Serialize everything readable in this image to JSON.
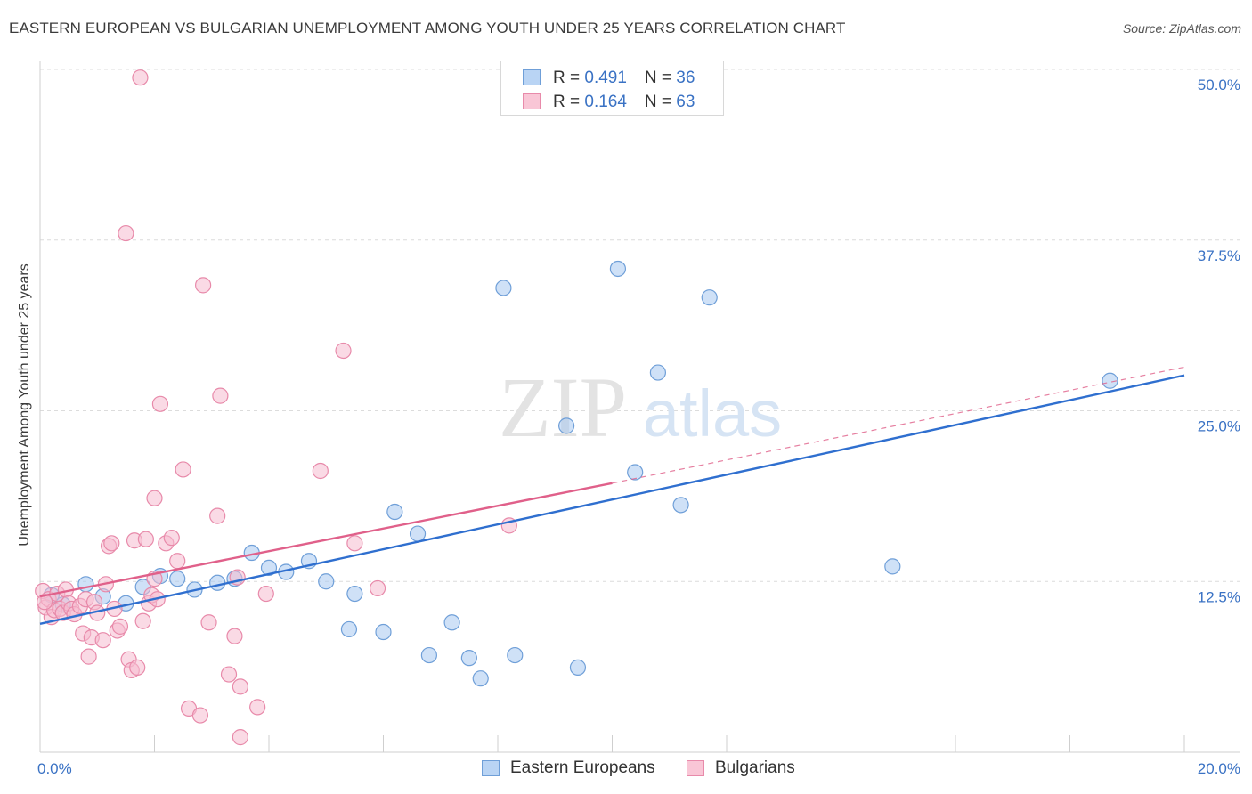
{
  "chart_data": {
    "type": "scatter",
    "title": "EASTERN EUROPEAN VS BULGARIAN UNEMPLOYMENT AMONG YOUTH UNDER 25 YEARS CORRELATION CHART",
    "source": "Source: ZipAtlas.com",
    "xlabel": "",
    "ylabel": "Unemployment Among Youth under 25 years",
    "xlim": [
      0,
      20
    ],
    "ylim": [
      0,
      50
    ],
    "x_tick_labels": [
      {
        "value": 0,
        "label": "0.0%"
      },
      {
        "value": 20,
        "label": "20.0%"
      }
    ],
    "y_tick_labels": [
      {
        "value": 12.5,
        "label": "12.5%"
      },
      {
        "value": 25,
        "label": "25.0%"
      },
      {
        "value": 37.5,
        "label": "37.5%"
      },
      {
        "value": 50,
        "label": "50.0%"
      }
    ],
    "legend": {
      "position": "top-center",
      "entries": [
        {
          "r_label": "R = ",
          "r_value": "0.491",
          "n_label": "N = ",
          "n_value": "36"
        },
        {
          "r_label": "R = ",
          "r_value": "0.164",
          "n_label": "N = ",
          "n_value": "63"
        }
      ]
    },
    "series": [
      {
        "name": "Eastern Europeans",
        "color": "#a8c8f0",
        "stroke": "#6f9fd8",
        "trend_color": "#2f6fcf",
        "trend": {
          "x0": 0,
          "y0": 9.4,
          "x1": 20,
          "y1": 27.6
        },
        "points": [
          [
            0.2,
            11.5
          ],
          [
            0.4,
            10.8
          ],
          [
            0.8,
            12.3
          ],
          [
            1.1,
            11.4
          ],
          [
            1.5,
            10.9
          ],
          [
            1.8,
            12.1
          ],
          [
            2.1,
            12.9
          ],
          [
            2.4,
            12.7
          ],
          [
            2.7,
            11.9
          ],
          [
            3.1,
            12.4
          ],
          [
            3.4,
            12.7
          ],
          [
            3.7,
            14.6
          ],
          [
            4.0,
            13.5
          ],
          [
            4.3,
            13.2
          ],
          [
            4.7,
            14.0
          ],
          [
            5.0,
            12.5
          ],
          [
            5.4,
            9.0
          ],
          [
            5.5,
            11.6
          ],
          [
            6.0,
            8.8
          ],
          [
            6.2,
            17.6
          ],
          [
            6.6,
            16.0
          ],
          [
            6.8,
            7.1
          ],
          [
            7.2,
            9.5
          ],
          [
            7.5,
            6.9
          ],
          [
            7.7,
            5.4
          ],
          [
            8.1,
            34.0
          ],
          [
            8.3,
            7.1
          ],
          [
            9.2,
            23.9
          ],
          [
            9.4,
            6.2
          ],
          [
            10.1,
            35.4
          ],
          [
            10.4,
            20.5
          ],
          [
            10.8,
            27.8
          ],
          [
            11.2,
            18.1
          ],
          [
            11.7,
            33.3
          ],
          [
            14.9,
            13.6
          ],
          [
            18.7,
            27.2
          ]
        ]
      },
      {
        "name": "Bulgarians",
        "color": "#f6bcd0",
        "stroke": "#e88aaa",
        "trend_color": "#e0608a",
        "trend": {
          "x0": 0,
          "y0": 11.4,
          "x1": 10.0,
          "y1": 19.7
        },
        "trend_dashed": {
          "x0": 10.0,
          "y0": 19.7,
          "x1": 20,
          "y1": 28.2
        },
        "points": [
          [
            0.05,
            11.8
          ],
          [
            0.1,
            10.6
          ],
          [
            0.15,
            11.2
          ],
          [
            0.2,
            9.9
          ],
          [
            0.25,
            10.4
          ],
          [
            0.3,
            11.6
          ],
          [
            0.35,
            10.5
          ],
          [
            0.4,
            10.2
          ],
          [
            0.45,
            11.9
          ],
          [
            0.5,
            10.9
          ],
          [
            0.55,
            10.5
          ],
          [
            0.6,
            10.1
          ],
          [
            0.7,
            10.7
          ],
          [
            0.75,
            8.7
          ],
          [
            0.8,
            11.2
          ],
          [
            0.85,
            7.0
          ],
          [
            0.9,
            8.4
          ],
          [
            0.95,
            11.0
          ],
          [
            1.0,
            10.2
          ],
          [
            1.1,
            8.2
          ],
          [
            1.15,
            12.3
          ],
          [
            1.2,
            15.1
          ],
          [
            1.25,
            15.3
          ],
          [
            1.3,
            10.5
          ],
          [
            1.35,
            8.9
          ],
          [
            1.4,
            9.2
          ],
          [
            1.5,
            38.0
          ],
          [
            1.55,
            6.8
          ],
          [
            1.6,
            6.0
          ],
          [
            1.65,
            15.5
          ],
          [
            1.7,
            6.2
          ],
          [
            1.75,
            49.4
          ],
          [
            1.8,
            9.6
          ],
          [
            1.85,
            15.6
          ],
          [
            1.9,
            10.9
          ],
          [
            1.95,
            11.5
          ],
          [
            2.0,
            12.7
          ],
          [
            2.05,
            11.2
          ],
          [
            2.0,
            18.6
          ],
          [
            2.1,
            25.5
          ],
          [
            2.2,
            15.3
          ],
          [
            2.3,
            15.7
          ],
          [
            2.4,
            14.0
          ],
          [
            2.5,
            20.7
          ],
          [
            2.6,
            3.2
          ],
          [
            2.8,
            2.7
          ],
          [
            2.85,
            34.2
          ],
          [
            2.95,
            9.5
          ],
          [
            3.1,
            17.3
          ],
          [
            3.15,
            26.1
          ],
          [
            3.3,
            5.7
          ],
          [
            3.4,
            8.5
          ],
          [
            3.45,
            12.8
          ],
          [
            3.5,
            4.8
          ],
          [
            3.5,
            1.1
          ],
          [
            3.8,
            3.3
          ],
          [
            3.95,
            11.6
          ],
          [
            4.9,
            20.6
          ],
          [
            5.3,
            29.4
          ],
          [
            5.5,
            15.3
          ],
          [
            5.9,
            12.0
          ],
          [
            8.2,
            16.6
          ],
          [
            0.08,
            11.0
          ]
        ]
      }
    ]
  },
  "legend_bottom": [
    {
      "label": "Eastern Europeans",
      "color": "#b9d4f4",
      "stroke": "#6f9fd8"
    },
    {
      "label": "Bulgarians",
      "color": "#f9c6d6",
      "stroke": "#e88aaa"
    }
  ],
  "watermark": {
    "part1": "ZIP",
    "part2": "atlas"
  }
}
